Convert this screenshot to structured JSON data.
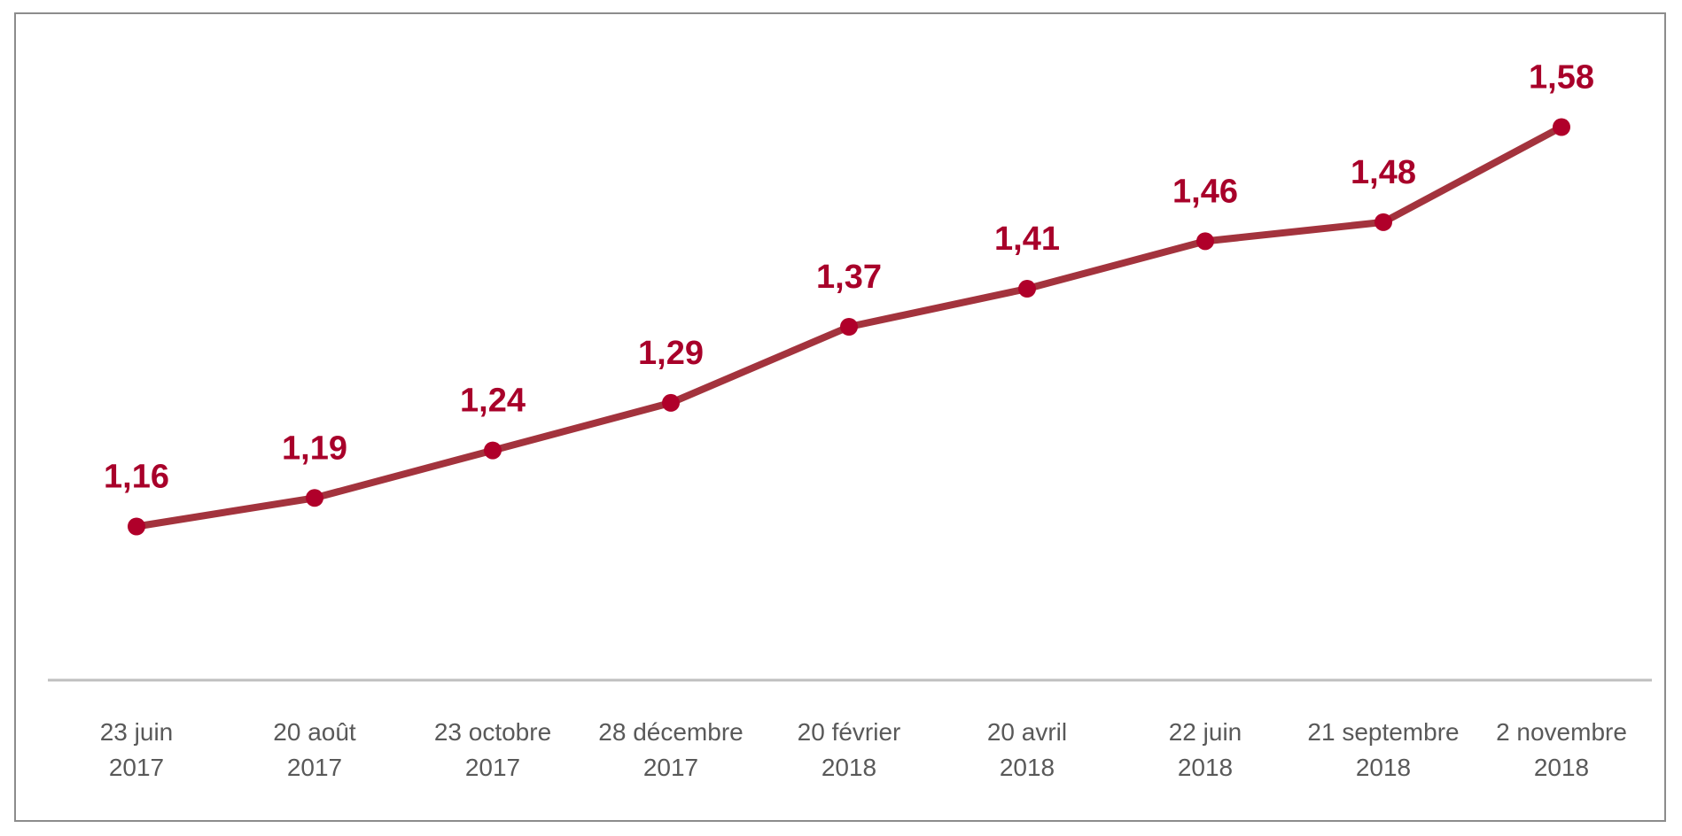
{
  "chart_data": {
    "type": "line",
    "categories": [
      [
        "23 juin",
        "2017"
      ],
      [
        "20 août",
        "2017"
      ],
      [
        "23 octobre",
        "2017"
      ],
      [
        "28 décembre",
        "2017"
      ],
      [
        "20 février",
        "2018"
      ],
      [
        "20 avril",
        "2018"
      ],
      [
        "22 juin",
        "2018"
      ],
      [
        "21 septembre",
        "2018"
      ],
      [
        "2 novembre",
        "2018"
      ]
    ],
    "values": [
      1.16,
      1.19,
      1.24,
      1.29,
      1.37,
      1.41,
      1.46,
      1.48,
      1.58
    ],
    "data_labels": [
      "1,16",
      "1,19",
      "1,24",
      "1,29",
      "1,37",
      "1,41",
      "1,46",
      "1,48",
      "1,58"
    ],
    "title": "",
    "xlabel": "",
    "ylabel": "",
    "ylim": [
      0.99,
      1.6
    ],
    "grid": false,
    "legend": "none",
    "colors": {
      "line": "#a3333d",
      "marker": "#b0002a",
      "label": "#a8002a",
      "axis": "#bfbfbf",
      "tick_text": "#595959"
    }
  }
}
